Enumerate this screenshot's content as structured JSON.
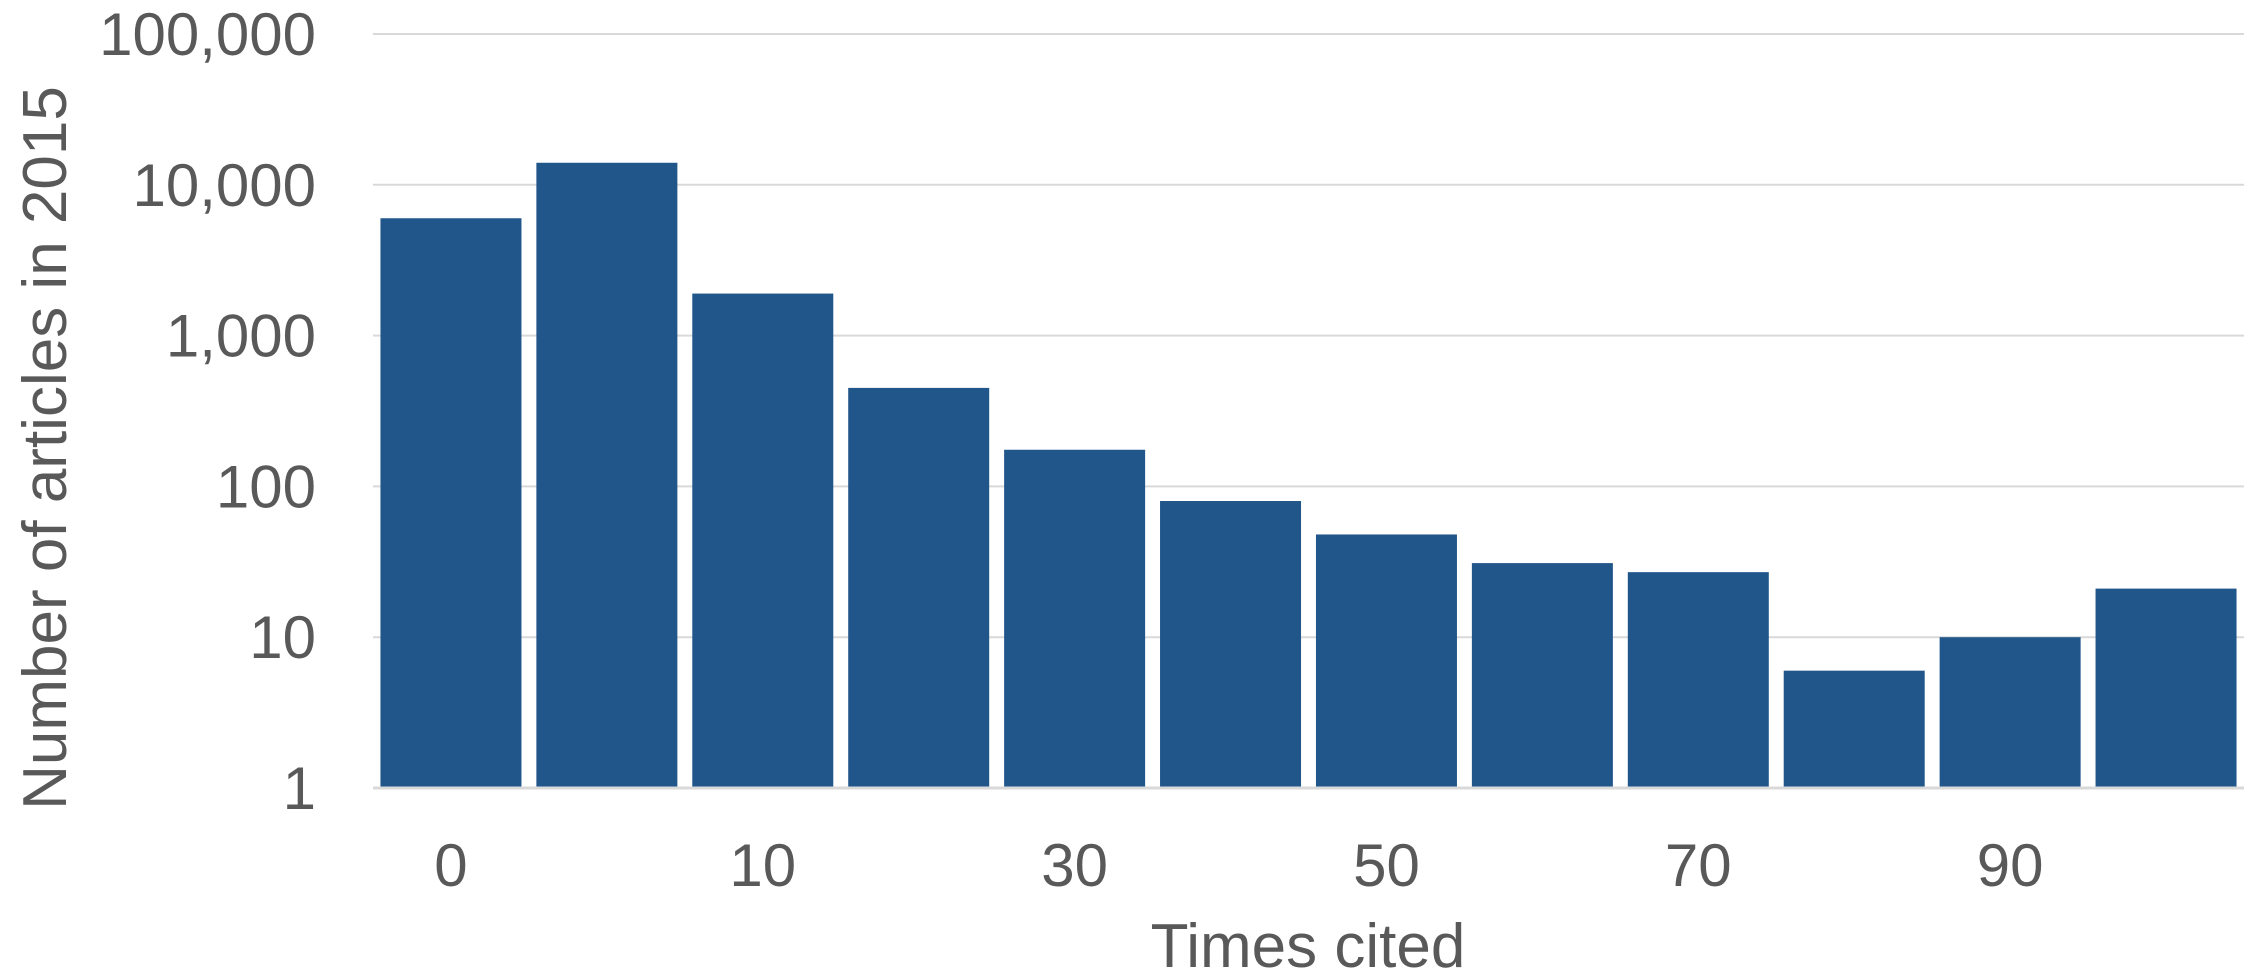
{
  "chart_data": {
    "type": "bar",
    "title": "",
    "xlabel": "Times cited",
    "ylabel": "Number of articles in 2015",
    "y_scale": "log",
    "ylim": [
      1,
      100000
    ],
    "grid": true,
    "legend": "none",
    "bar_color": "#21568a",
    "grid_color": "#d9d9d9",
    "axis_color": "#d9d9d9",
    "text_color": "#595959",
    "yticks": [
      1,
      10,
      100,
      1000,
      10000,
      100000
    ],
    "ytick_labels": [
      "1",
      "10",
      "100",
      "1,000",
      "10,000",
      "100,000"
    ],
    "x_tick_labels": [
      "0",
      "",
      "10",
      "",
      "30",
      "",
      "50",
      "",
      "70",
      "",
      "90",
      ""
    ],
    "series": [
      {
        "values": [
          6000,
          14000,
          1900,
          450,
          175,
          80,
          48,
          31,
          27,
          6,
          10,
          21
        ]
      }
    ]
  }
}
